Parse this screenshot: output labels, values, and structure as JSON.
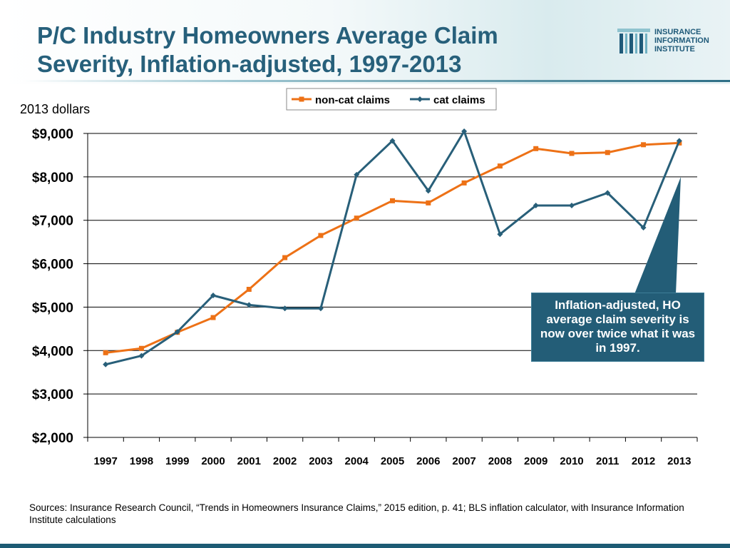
{
  "header": {
    "title_line1": "P/C Industry Homeowners Average Claim",
    "title_line2": "Severity, Inflation-adjusted, 1997-2013"
  },
  "logo": {
    "line1": "INSURANCE",
    "line2": "INFORMATION",
    "line3": "INSTITUTE"
  },
  "units_label": "2013 dollars",
  "callout_text": "Inflation-adjusted, HO average claim severity is now over twice what it was in 1997.",
  "sources": "Sources: Insurance Research Council, “Trends in Homeowners Insurance Claims,” 2015 edition,  p. 41; BLS inflation calculator, with Insurance Information Institute calculations",
  "colors": {
    "title": "#27607b",
    "non_cat": "#ed7116",
    "cat": "#285f79",
    "callout_bg": "#235d77"
  },
  "chart_data": {
    "type": "line",
    "title": "P/C Industry Homeowners Average Claim Severity, Inflation-adjusted, 1997-2013",
    "ylabel": "2013 dollars",
    "categories": [
      "1997",
      "1998",
      "1999",
      "2000",
      "2001",
      "2002",
      "2003",
      "2004",
      "2005",
      "2006",
      "2007",
      "2008",
      "2009",
      "2010",
      "2011",
      "2012",
      "2013"
    ],
    "y_ticks": [
      "$2,000",
      "$3,000",
      "$4,000",
      "$5,000",
      "$6,000",
      "$7,000",
      "$8,000",
      "$9,000"
    ],
    "ylim": [
      2000,
      9000
    ],
    "grid": true,
    "legend_position": "top",
    "series": [
      {
        "name": "non-cat claims",
        "color": "#ed7116",
        "marker": "square",
        "values": [
          3950,
          4050,
          4420,
          4760,
          5410,
          6140,
          6650,
          7050,
          7450,
          7400,
          7860,
          8250,
          8650,
          8540,
          8560,
          8740,
          8780
        ]
      },
      {
        "name": "cat claims",
        "color": "#285f79",
        "marker": "diamond",
        "values": [
          3680,
          3880,
          4430,
          5270,
          5050,
          4970,
          4970,
          8050,
          8830,
          7680,
          9050,
          6680,
          7340,
          7340,
          7630,
          6830,
          8830
        ]
      }
    ]
  }
}
